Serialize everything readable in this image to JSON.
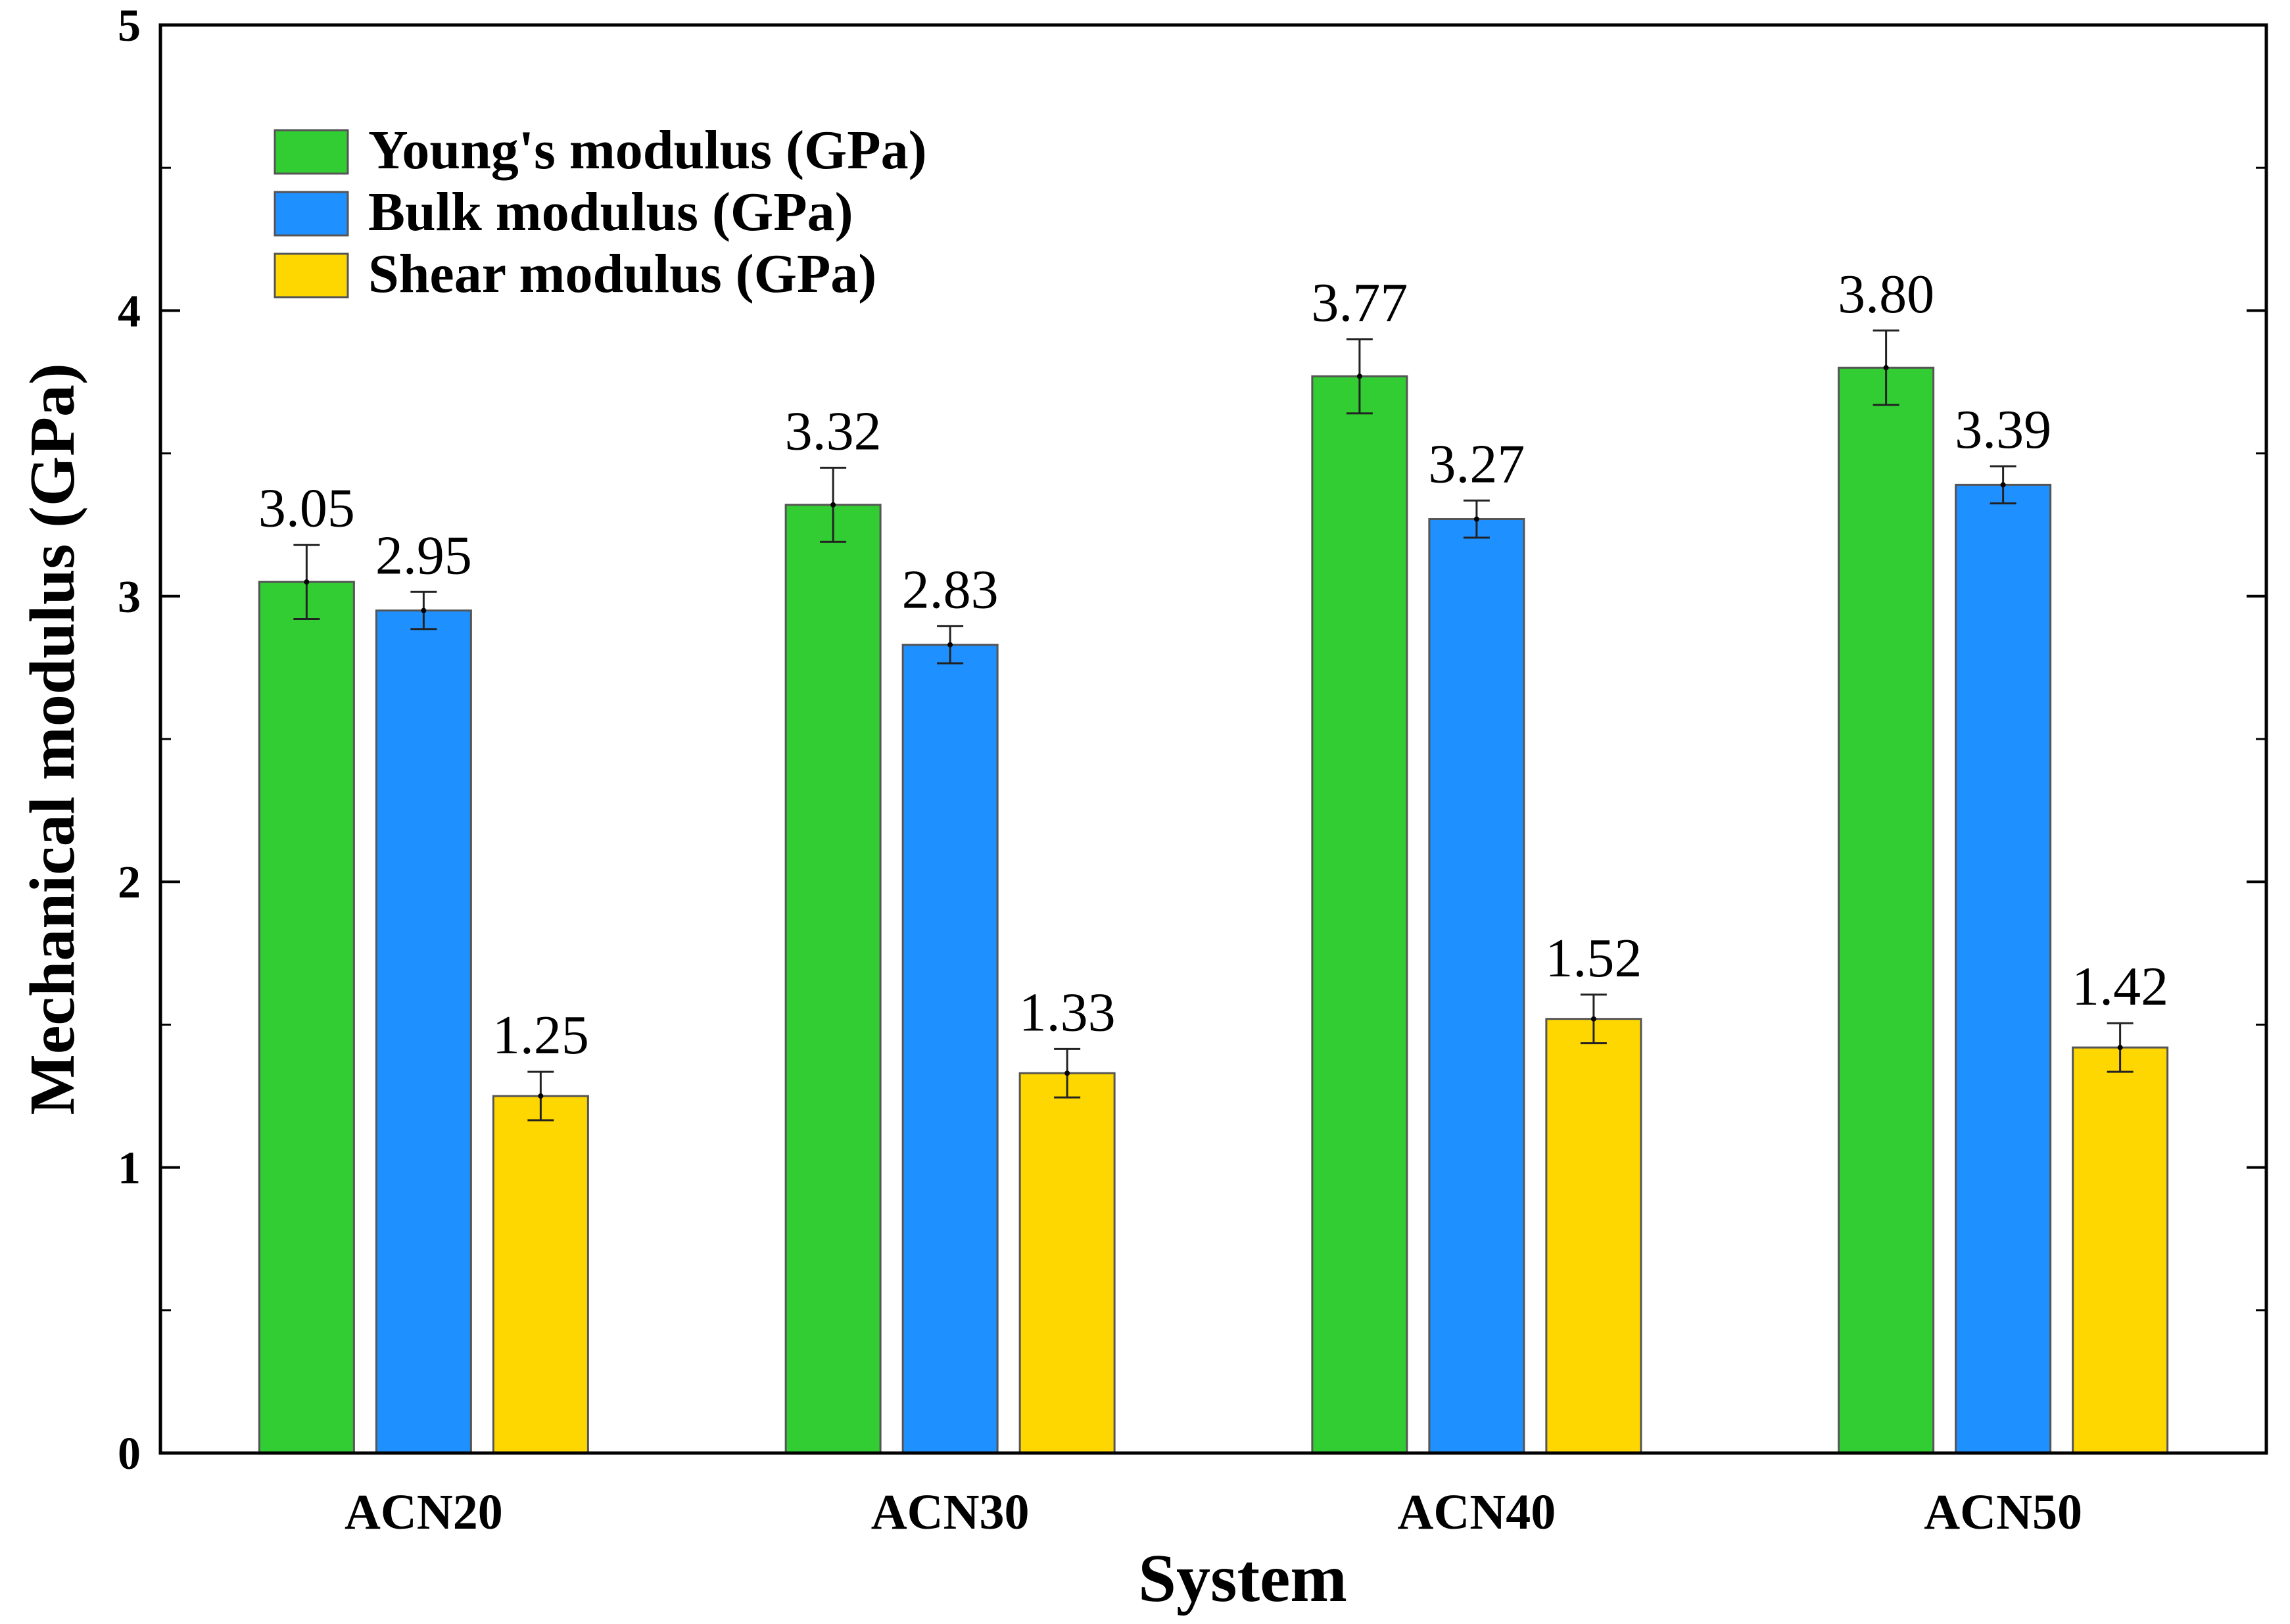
{
  "chart_data": {
    "type": "bar",
    "title": "",
    "xlabel": "System",
    "ylabel": "Mechanical modulus (GPa)",
    "ylim": [
      0,
      5
    ],
    "yticks": [
      "0",
      "1",
      "2",
      "3",
      "4",
      "5"
    ],
    "categories": [
      "ACN20",
      "ACN30",
      "ACN40",
      "ACN50"
    ],
    "legend_position": "top-left",
    "series": [
      {
        "name": "Young's modulus (GPa)",
        "color": "#32CD32",
        "values": [
          3.05,
          3.32,
          3.77,
          3.8
        ],
        "labels": [
          "3.05",
          "3.32",
          "3.77",
          "3.80"
        ],
        "errors": [
          0.13,
          0.13,
          0.13,
          0.13
        ]
      },
      {
        "name": "Bulk modulus (GPa)",
        "color": "#1E90FF",
        "values": [
          2.95,
          2.83,
          3.27,
          3.39
        ],
        "labels": [
          "2.95",
          "2.83",
          "3.27",
          "3.39"
        ],
        "errors": [
          0.065,
          0.065,
          0.065,
          0.065
        ]
      },
      {
        "name": "Shear modulus (GPa)",
        "color": "#FFD700",
        "values": [
          1.25,
          1.33,
          1.52,
          1.42
        ],
        "labels": [
          "1.25",
          "1.33",
          "1.52",
          "1.42"
        ],
        "errors": [
          0.085,
          0.085,
          0.085,
          0.085
        ]
      }
    ]
  }
}
